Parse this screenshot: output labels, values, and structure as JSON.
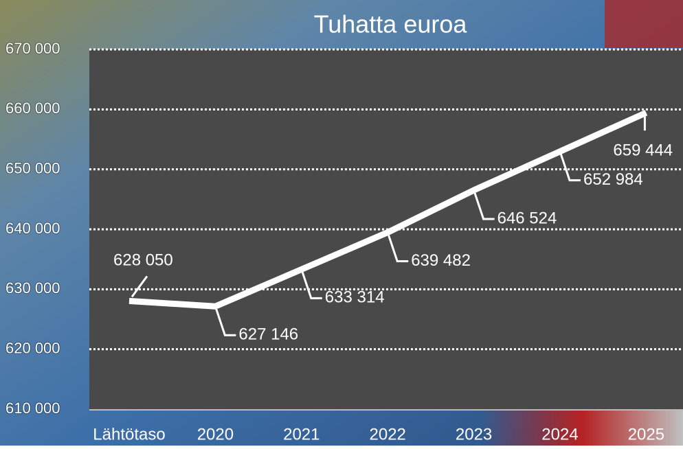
{
  "chart_data": {
    "type": "line",
    "title": "Tuhatta euroa",
    "categories": [
      "Lähtötaso",
      "2020",
      "2021",
      "2022",
      "2023",
      "2024",
      "2025"
    ],
    "values": [
      628050,
      627146,
      633314,
      639482,
      646524,
      652984,
      659444
    ],
    "value_labels": [
      "628 050",
      "627 146",
      "633 314",
      "639 482",
      "646 524",
      "652 984",
      "659 444"
    ],
    "color": "#ffffff",
    "ylim": [
      610000,
      670000
    ],
    "yticks": [
      {
        "value": 610000,
        "label": "610 000"
      },
      {
        "value": 620000,
        "label": "620 000"
      },
      {
        "value": 630000,
        "label": "630 000"
      },
      {
        "value": 640000,
        "label": "640 000"
      },
      {
        "value": 650000,
        "label": "650 000"
      },
      {
        "value": 660000,
        "label": "660 000"
      },
      {
        "value": 670000,
        "label": "670 000"
      }
    ],
    "grid": true
  }
}
